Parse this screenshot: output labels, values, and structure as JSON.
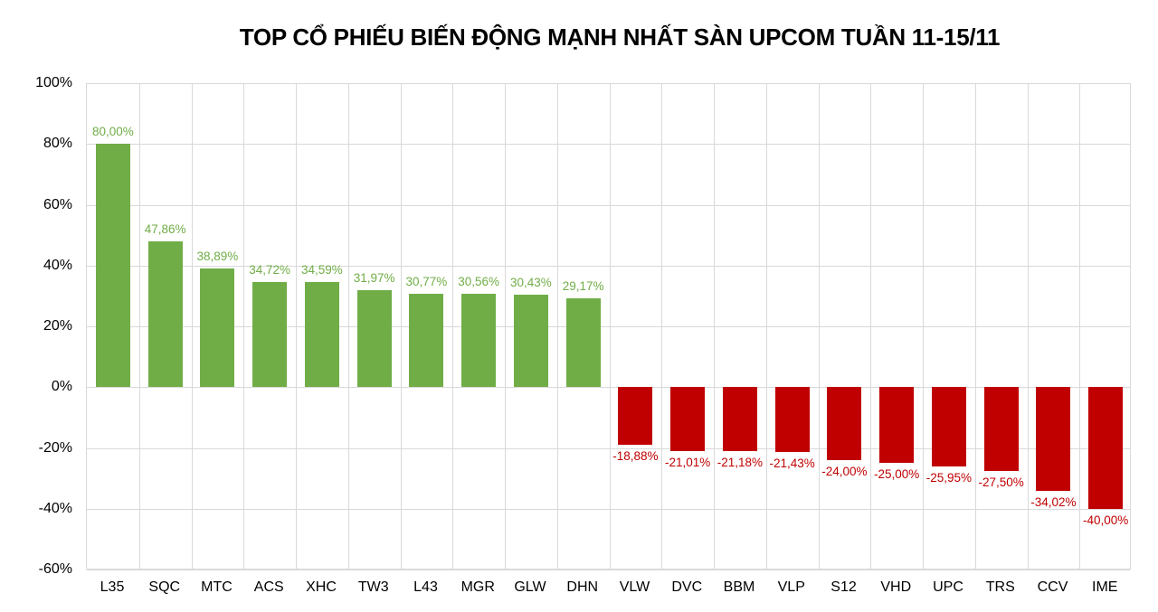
{
  "chart_data": {
    "type": "bar",
    "title": "TOP CỔ PHIẾU BIẾN ĐỘNG MẠNH NHẤT SÀN UPCOM TUẦN 11-15/11",
    "xlabel": "",
    "ylabel": "",
    "ylim": [
      -60,
      100
    ],
    "yticks": [
      "100%",
      "80%",
      "60%",
      "40%",
      "20%",
      "0%",
      "-20%",
      "-40%",
      "-60%"
    ],
    "grid": true,
    "legend": "none",
    "colors": {
      "positive": "#70AD47",
      "negative": "#C00000"
    },
    "categories": [
      "L35",
      "SQC",
      "MTC",
      "ACS",
      "XHC",
      "TW3",
      "L43",
      "MGR",
      "GLW",
      "DHN",
      "VLW",
      "DVC",
      "BBM",
      "VLP",
      "S12",
      "VHD",
      "UPC",
      "TRS",
      "CCV",
      "IME"
    ],
    "values": [
      80.0,
      47.86,
      38.89,
      34.72,
      34.59,
      31.97,
      30.77,
      30.56,
      30.43,
      29.17,
      -18.88,
      -21.01,
      -21.18,
      -21.43,
      -24.0,
      -25.0,
      -25.95,
      -27.5,
      -34.02,
      -40.0
    ],
    "labels": [
      "80,00%",
      "47,86%",
      "38,89%",
      "34,72%",
      "34,59%",
      "31,97%",
      "30,77%",
      "30,56%",
      "30,43%",
      "29,17%",
      "-18,88%",
      "-21,01%",
      "-21,18%",
      "-21,43%",
      "-24,00%",
      "-25,00%",
      "-25,95%",
      "-27,50%",
      "-34,02%",
      "-40,00%"
    ]
  }
}
